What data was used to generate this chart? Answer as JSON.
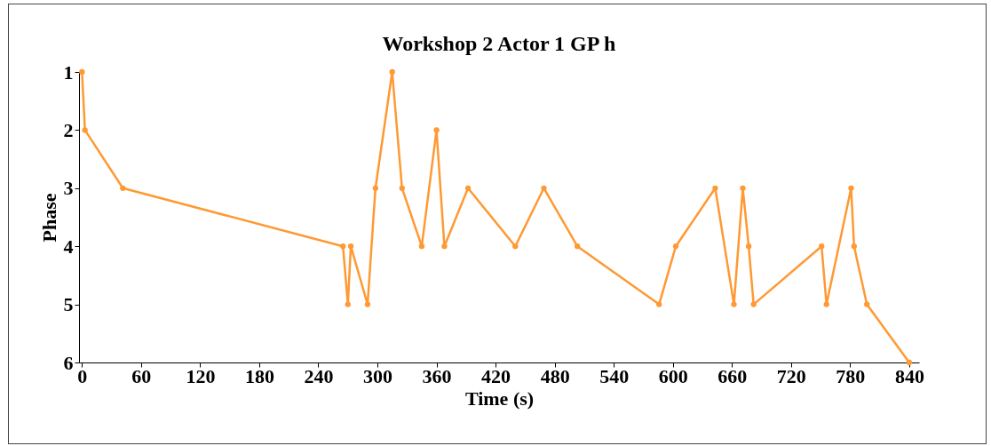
{
  "chart_data": {
    "type": "line",
    "title": "Workshop 2 Actor 1 GP h",
    "xlabel": "Time (s)",
    "ylabel": "Phase",
    "x": [
      0,
      3,
      41.5,
      265,
      270,
      273,
      290,
      298,
      315,
      325,
      345,
      360,
      368,
      392,
      440,
      469,
      503,
      586,
      603,
      643,
      662,
      671,
      677,
      682,
      751,
      756,
      781,
      784,
      797,
      840
    ],
    "series": [
      {
        "color": "#ff9933",
        "values": [
          1,
          2,
          3,
          4,
          5,
          4,
          5,
          3,
          1,
          3,
          4,
          2,
          4,
          3,
          4,
          3,
          4,
          5,
          4,
          3,
          5,
          3,
          4,
          5,
          4,
          5,
          3,
          4,
          5,
          6
        ]
      }
    ],
    "xlim": [
      -3,
      850
    ],
    "xticks": [
      0,
      60,
      120,
      180,
      240,
      300,
      360,
      420,
      480,
      540,
      600,
      660,
      720,
      780,
      840
    ],
    "ylim": [
      6,
      1
    ],
    "yticks": [
      1,
      2,
      3,
      4,
      5,
      6
    ],
    "grid": false,
    "marker": "circle",
    "line_style": "solid",
    "legend": false
  }
}
